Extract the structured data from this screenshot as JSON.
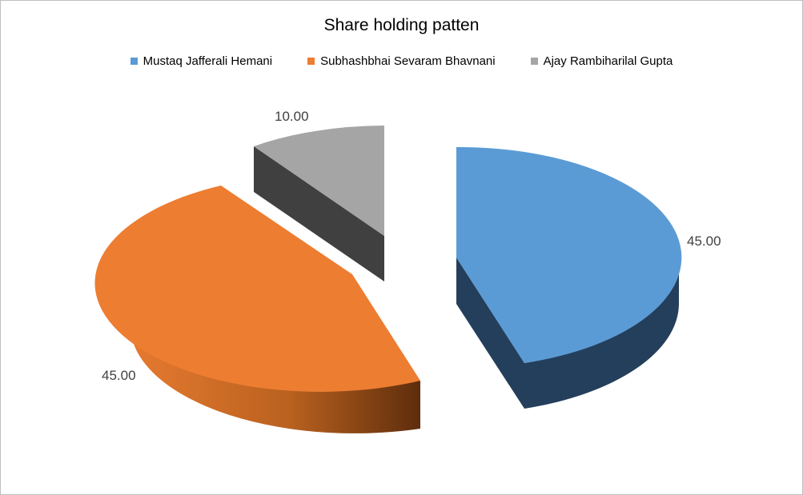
{
  "chart_data": {
    "type": "pie",
    "title": "Share holding patten",
    "categories": [
      "Mustaq Jafferali Hemani",
      "Subhashbhai Sevaram Bhavnani",
      "Ajay Rambiharilal Gupta"
    ],
    "values": [
      45.0,
      45.0,
      10.0
    ],
    "value_labels": [
      "45.00",
      "45.00",
      "10.00"
    ],
    "colors": [
      "#5b9bd5",
      "#ed7d31",
      "#a5a5a5"
    ],
    "side_colors": [
      "#243f5c",
      "#9c4f1b",
      "#404040"
    ],
    "legend_position": "top",
    "exploded": true,
    "three_d": true
  }
}
